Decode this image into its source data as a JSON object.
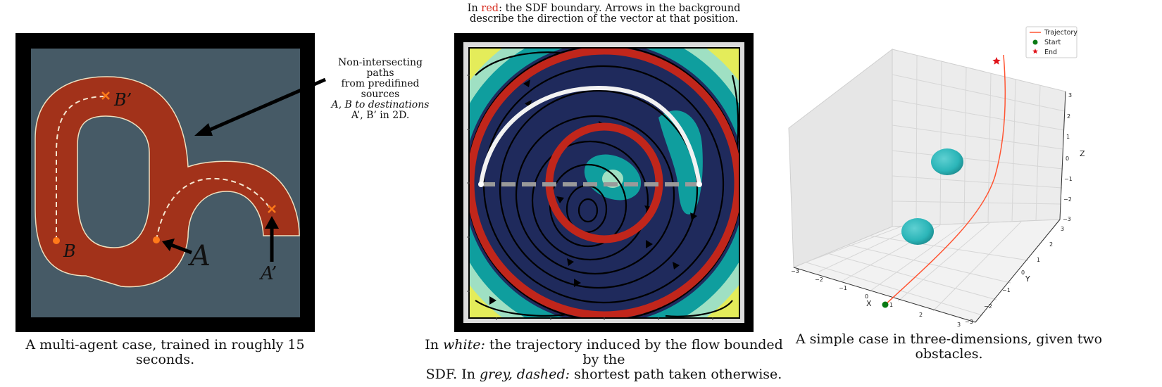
{
  "panel1": {
    "caption": "A multi-agent case, trained in roughly 15 seconds.",
    "annotation": [
      "Non-intersecting paths",
      "from predifined sources",
      "A, B to destinations",
      "A’, B’ in 2D."
    ],
    "labels": {
      "A": "A",
      "B": "B",
      "A_prime": "A’",
      "B_prime": "B’"
    },
    "colors": {
      "background": "#465a66",
      "path": "#a2321a",
      "frame": "#000000"
    }
  },
  "panel2": {
    "title_prefix": "In ",
    "title_red": "red",
    "title_rest": ": the SDF boundary. Arrows in the background",
    "title_line2": "describe the direction of the vector at that position.",
    "caption_line1_prefix": "In ",
    "caption_line1_italic": "white:",
    "caption_line1_rest": " the trajectory induced by the flow bounded by the",
    "caption_line2_prefix": "SDF. In ",
    "caption_line2_italic": "grey, dashed:",
    "caption_line2_rest": " shortest path taken otherwise.",
    "colors": {
      "inner": "#1f2a5c",
      "boundary": "#c1261b",
      "teal": "#0f9e9e",
      "mint": "#9fe0c3",
      "yellow": "#e4ec5a"
    }
  },
  "panel3": {
    "caption": "A simple case in three-dimensions, given two obstacles.",
    "legend": [
      {
        "label": "Trajectory",
        "color": "#ff5533",
        "marker": "line"
      },
      {
        "label": "Start",
        "color": "#0a7a14",
        "marker": "circle"
      },
      {
        "label": "End",
        "color": "#e0141b",
        "marker": "star"
      }
    ],
    "axes": {
      "x_label": "X",
      "y_label": "Y",
      "z_label": "Z",
      "x_ticks": [
        "−3",
        "−2",
        "−1",
        "0",
        "1",
        "2",
        "3"
      ],
      "y_ticks": [
        "3",
        "2",
        "1",
        "0",
        "−1",
        "−2",
        "−3"
      ],
      "z_ticks": [
        "3",
        "2",
        "1",
        "0",
        "−1",
        "−2",
        "−3"
      ]
    },
    "colors": {
      "obstacle": "#2bb5b8",
      "pane": "#e9e9e9"
    }
  }
}
